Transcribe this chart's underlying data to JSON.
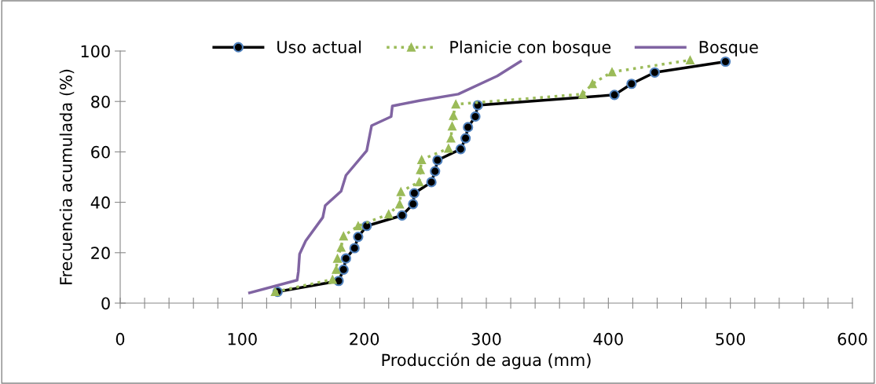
{
  "chart_data": {
    "type": "line",
    "xlabel": "Producción de agua (mm)",
    "ylabel": "Frecuencia acumulada (%)",
    "xlim": [
      0,
      600
    ],
    "ylim": [
      0,
      100
    ],
    "xticks": [
      0,
      {
        "value": 20,
        "label": null
      },
      {
        "value": 40,
        "label": null
      },
      {
        "value": 60,
        "label": null
      },
      {
        "value": 80,
        "label": null
      },
      100,
      {
        "value": 120,
        "label": null
      },
      {
        "value": 140,
        "label": null
      },
      {
        "value": 160,
        "label": null
      },
      {
        "value": 180,
        "label": null
      },
      200,
      {
        "value": 220,
        "label": null
      },
      {
        "value": 240,
        "label": null
      },
      {
        "value": 260,
        "label": null
      },
      {
        "value": 280,
        "label": null
      },
      300,
      {
        "value": 320,
        "label": null
      },
      {
        "value": 340,
        "label": null
      },
      {
        "value": 360,
        "label": null
      },
      {
        "value": 380,
        "label": null
      },
      400,
      {
        "value": 420,
        "label": null
      },
      {
        "value": 440,
        "label": null
      },
      {
        "value": 460,
        "label": null
      },
      {
        "value": 480,
        "label": null
      },
      500,
      {
        "value": 520,
        "label": null
      },
      {
        "value": 540,
        "label": null
      },
      {
        "value": 560,
        "label": null
      },
      {
        "value": 580,
        "label": null
      },
      600
    ],
    "yticks": [
      0,
      20,
      40,
      60,
      80,
      100
    ],
    "grid": false,
    "legend": "top",
    "series": [
      {
        "name": "Uso actual",
        "color": "#000000",
        "marker": "circle",
        "line_style": "solid",
        "x": [
          129,
          179,
          183,
          185,
          192,
          195,
          202,
          231,
          240,
          241,
          255,
          258,
          260,
          279,
          283,
          285,
          291,
          293,
          405,
          419,
          438,
          496
        ],
        "values": [
          4.5,
          8.8,
          13.3,
          17.7,
          21.8,
          26.3,
          30.6,
          34.8,
          39.3,
          43.6,
          48.0,
          52.3,
          56.7,
          61.1,
          65.4,
          69.8,
          74.0,
          78.5,
          82.6,
          87.0,
          91.5,
          95.8
        ]
      },
      {
        "name": "Planicie con bosque",
        "color": "#9bbb59",
        "marker": "triangle",
        "line_style": "dotted",
        "x": [
          127,
          174,
          177,
          178,
          181,
          183,
          195,
          220,
          229,
          230,
          245,
          246,
          247,
          269,
          271,
          272,
          273,
          275,
          379,
          387,
          403,
          467
        ],
        "values": [
          4.5,
          9.4,
          13.3,
          17.7,
          22.1,
          26.6,
          30.6,
          35.3,
          39.3,
          44.2,
          48.1,
          52.9,
          56.9,
          61.4,
          65.4,
          70.2,
          74.4,
          78.9,
          82.9,
          87.0,
          91.7,
          96.4
        ]
      },
      {
        "name": "Bosque",
        "color": "#8064a2",
        "marker": "none",
        "line_style": "solid",
        "x": [
          106,
          145,
          146,
          147,
          152,
          166,
          168,
          181,
          185,
          202,
          206,
          222,
          223,
          245,
          277,
          309,
          328
        ],
        "values": [
          4.1,
          9.1,
          12.5,
          19.5,
          24.7,
          34.0,
          38.7,
          44.4,
          50.7,
          60.5,
          70.4,
          74.0,
          78.2,
          80.3,
          82.9,
          90.1,
          95.9
        ]
      }
    ]
  }
}
